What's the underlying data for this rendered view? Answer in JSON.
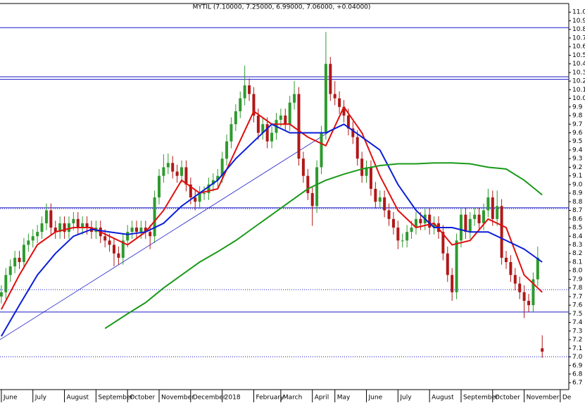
{
  "chart_data": {
    "type": "candlestick",
    "title": "MYTIL (7.10000, 7.25000, 6.99000, 7.06000, +0.04000)",
    "xlim": [
      -0.3,
      125.9
    ],
    "ylim": [
      6.62,
      11.1
    ],
    "xticks": [
      {
        "value": 0,
        "label": "June"
      },
      {
        "value": 7,
        "label": "July"
      },
      {
        "value": 14,
        "label": "August"
      },
      {
        "value": 21,
        "label": "September"
      },
      {
        "value": 28,
        "label": "October"
      },
      {
        "value": 35,
        "label": "November"
      },
      {
        "value": 42,
        "label": "December"
      },
      {
        "value": 49,
        "label": "2018"
      },
      {
        "value": 56,
        "label": "February"
      },
      {
        "value": 62,
        "label": "March"
      },
      {
        "value": 69,
        "label": "April"
      },
      {
        "value": 74,
        "label": "May"
      },
      {
        "value": 81,
        "label": "June"
      },
      {
        "value": 88,
        "label": "July"
      },
      {
        "value": 95,
        "label": "August"
      },
      {
        "value": 102,
        "label": "September"
      },
      {
        "value": 109,
        "label": "October"
      },
      {
        "value": 116,
        "label": "November"
      },
      {
        "value": 124,
        "label": "De"
      }
    ],
    "yticks": [
      6.7,
      6.8,
      6.9,
      {
        "value": 7,
        "label": "7.0"
      },
      7.1,
      7.2,
      7.3,
      7.4,
      7.5,
      7.6,
      7.7,
      7.8,
      7.9,
      {
        "value": 8,
        "label": "8.0"
      },
      8.1,
      8.2,
      8.3,
      8.4,
      8.5,
      8.6,
      8.7,
      8.8,
      8.9,
      {
        "value": 9,
        "label": "9.0"
      },
      9.1,
      9.2,
      9.3,
      9.4,
      9.5,
      9.6,
      9.7,
      9.8,
      9.9,
      {
        "value": 10,
        "label": "10.0"
      },
      10.1,
      10.2,
      10.3,
      10.4,
      10.5,
      10.6,
      10.7,
      10.8,
      10.9,
      {
        "value": 11,
        "label": "11.0"
      }
    ],
    "up_color": "#2e9a2e",
    "down_color": "#b01818",
    "candles": [
      [
        7.7,
        7.83,
        7.62,
        7.75
      ],
      [
        7.75,
        8.03,
        7.67,
        7.95
      ],
      [
        7.95,
        8.13,
        7.87,
        8.05
      ],
      [
        8.05,
        8.23,
        7.97,
        8.15
      ],
      [
        8.15,
        8.23,
        8.02,
        8.1
      ],
      [
        8.1,
        8.38,
        8.02,
        8.3
      ],
      [
        8.3,
        8.43,
        8.22,
        8.35
      ],
      [
        8.35,
        8.48,
        8.27,
        8.4
      ],
      [
        8.4,
        8.53,
        8.32,
        8.45
      ],
      [
        8.45,
        8.63,
        8.37,
        8.55
      ],
      [
        8.55,
        8.78,
        8.47,
        8.7
      ],
      [
        8.7,
        8.78,
        8.42,
        8.5
      ],
      [
        8.5,
        8.58,
        8.37,
        8.45
      ],
      [
        8.45,
        8.63,
        8.37,
        8.55
      ],
      [
        8.55,
        8.63,
        8.37,
        8.45
      ],
      [
        8.45,
        8.63,
        8.37,
        8.55
      ],
      [
        8.55,
        8.68,
        8.47,
        8.6
      ],
      [
        8.6,
        8.68,
        8.42,
        8.5
      ],
      [
        8.5,
        8.63,
        8.42,
        8.55
      ],
      [
        8.55,
        8.63,
        8.42,
        8.5
      ],
      [
        8.5,
        8.58,
        8.37,
        8.45
      ],
      [
        8.45,
        8.58,
        8.37,
        8.5
      ],
      [
        8.5,
        8.58,
        8.32,
        8.4
      ],
      [
        8.4,
        8.48,
        8.27,
        8.35
      ],
      [
        8.35,
        8.43,
        8.22,
        8.3
      ],
      [
        8.3,
        8.38,
        8.05,
        8.2
      ],
      [
        8.2,
        8.28,
        8.07,
        8.15
      ],
      [
        8.15,
        8.43,
        8.07,
        8.35
      ],
      [
        8.35,
        8.53,
        8.27,
        8.45
      ],
      [
        8.45,
        8.58,
        8.37,
        8.5
      ],
      [
        8.5,
        8.58,
        8.37,
        8.45
      ],
      [
        8.45,
        8.58,
        8.37,
        8.5
      ],
      [
        8.5,
        8.58,
        8.37,
        8.45
      ],
      [
        8.45,
        8.53,
        8.25,
        8.4
      ],
      [
        8.4,
        8.93,
        8.32,
        8.85
      ],
      [
        8.85,
        9.18,
        8.77,
        9.1
      ],
      [
        9.1,
        9.35,
        9.02,
        9.2
      ],
      [
        9.2,
        9.36,
        9.12,
        9.25
      ],
      [
        9.25,
        9.33,
        9.07,
        9.15
      ],
      [
        9.15,
        9.23,
        9.02,
        9.1
      ],
      [
        9.1,
        9.28,
        9.02,
        9.2
      ],
      [
        9.2,
        9.28,
        8.92,
        9.0
      ],
      [
        9.0,
        9.08,
        8.77,
        8.85
      ],
      [
        8.85,
        8.93,
        8.7,
        8.8
      ],
      [
        8.8,
        8.98,
        8.72,
        8.9
      ],
      [
        8.9,
        8.98,
        8.82,
        8.9
      ],
      [
        8.9,
        9.08,
        8.82,
        9.0
      ],
      [
        9.0,
        9.13,
        8.92,
        9.05
      ],
      [
        9.05,
        9.18,
        8.97,
        9.1
      ],
      [
        9.1,
        9.38,
        9.02,
        9.3
      ],
      [
        9.3,
        9.58,
        9.22,
        9.5
      ],
      [
        9.5,
        9.78,
        9.42,
        9.7
      ],
      [
        9.7,
        9.93,
        9.62,
        9.85
      ],
      [
        9.85,
        10.08,
        9.77,
        10.0
      ],
      [
        10.0,
        10.38,
        9.92,
        10.15
      ],
      [
        10.15,
        10.23,
        9.97,
        10.05
      ],
      [
        10.05,
        10.13,
        9.72,
        9.8
      ],
      [
        9.8,
        9.88,
        9.52,
        9.6
      ],
      [
        9.6,
        9.78,
        9.52,
        9.7
      ],
      [
        9.7,
        9.78,
        9.42,
        9.5
      ],
      [
        9.5,
        9.68,
        9.42,
        9.6
      ],
      [
        9.6,
        9.83,
        9.52,
        9.75
      ],
      [
        9.75,
        9.88,
        9.67,
        9.8
      ],
      [
        9.8,
        9.88,
        9.62,
        9.7
      ],
      [
        9.7,
        10.03,
        9.62,
        9.95
      ],
      [
        9.95,
        10.2,
        9.87,
        10.05
      ],
      [
        10.05,
        10.13,
        9.22,
        9.3
      ],
      [
        9.3,
        9.38,
        9.02,
        9.1
      ],
      [
        9.1,
        9.18,
        8.82,
        8.9
      ],
      [
        8.9,
        8.98,
        8.52,
        8.75
      ],
      [
        8.75,
        9.28,
        8.67,
        9.2
      ],
      [
        9.2,
        9.68,
        9.12,
        9.6
      ],
      [
        9.6,
        10.77,
        9.52,
        10.4
      ],
      [
        10.4,
        10.48,
        9.97,
        10.05
      ],
      [
        10.05,
        10.2,
        9.92,
        10.0
      ],
      [
        10.0,
        10.08,
        9.82,
        9.9
      ],
      [
        9.9,
        9.98,
        9.72,
        9.8
      ],
      [
        9.8,
        9.88,
        9.57,
        9.65
      ],
      [
        9.65,
        9.73,
        9.47,
        9.55
      ],
      [
        9.55,
        9.63,
        9.22,
        9.3
      ],
      [
        9.3,
        9.38,
        9.02,
        9.1
      ],
      [
        9.1,
        9.28,
        9.02,
        9.2
      ],
      [
        9.2,
        9.28,
        8.87,
        8.95
      ],
      [
        8.95,
        9.03,
        8.72,
        8.8
      ],
      [
        8.8,
        8.93,
        8.72,
        8.85
      ],
      [
        8.85,
        8.93,
        8.62,
        8.7
      ],
      [
        8.7,
        8.78,
        8.52,
        8.6
      ],
      [
        8.6,
        8.68,
        8.42,
        8.5
      ],
      [
        8.5,
        8.58,
        8.25,
        8.35
      ],
      [
        8.35,
        8.43,
        8.27,
        8.35
      ],
      [
        8.35,
        8.53,
        8.27,
        8.45
      ],
      [
        8.45,
        8.58,
        8.37,
        8.5
      ],
      [
        8.5,
        8.68,
        8.42,
        8.6
      ],
      [
        8.6,
        8.68,
        8.47,
        8.55
      ],
      [
        8.55,
        8.73,
        8.47,
        8.65
      ],
      [
        8.65,
        8.73,
        8.42,
        8.5
      ],
      [
        8.5,
        8.63,
        8.42,
        8.55
      ],
      [
        8.55,
        8.63,
        8.37,
        8.45
      ],
      [
        8.45,
        8.53,
        8.12,
        8.2
      ],
      [
        8.2,
        8.28,
        7.87,
        7.95
      ],
      [
        7.95,
        8.03,
        7.65,
        7.75
      ],
      [
        7.75,
        8.43,
        7.67,
        8.35
      ],
      [
        8.35,
        8.73,
        8.27,
        8.65
      ],
      [
        8.65,
        8.73,
        8.37,
        8.45
      ],
      [
        8.45,
        8.68,
        8.37,
        8.6
      ],
      [
        8.6,
        8.73,
        8.52,
        8.65
      ],
      [
        8.65,
        8.73,
        8.47,
        8.55
      ],
      [
        8.55,
        8.78,
        8.47,
        8.7
      ],
      [
        8.7,
        8.95,
        8.62,
        8.85
      ],
      [
        8.85,
        8.93,
        8.52,
        8.6
      ],
      [
        8.6,
        8.93,
        8.52,
        8.75
      ],
      [
        8.75,
        8.83,
        8.07,
        8.15
      ],
      [
        8.15,
        8.23,
        8.02,
        8.1
      ],
      [
        8.1,
        8.18,
        7.87,
        7.95
      ],
      [
        7.95,
        8.03,
        7.77,
        7.85
      ],
      [
        7.85,
        7.93,
        7.67,
        7.75
      ],
      [
        7.75,
        7.83,
        7.45,
        7.65
      ],
      [
        7.65,
        7.73,
        7.52,
        7.6
      ],
      [
        7.6,
        7.98,
        7.52,
        7.9
      ],
      [
        7.9,
        8.28,
        7.82,
        8.15
      ],
      [
        7.1,
        7.25,
        6.99,
        7.06
      ]
    ],
    "series": [
      {
        "color": "#e01010",
        "x": [
          0,
          4,
          8,
          12,
          16,
          20,
          24,
          28,
          32,
          36,
          40,
          44,
          48,
          52,
          56,
          60,
          64,
          68,
          72,
          76,
          80,
          84,
          88,
          92,
          96,
          100,
          104,
          108,
          112,
          116,
          120
        ],
        "values": [
          7.55,
          7.95,
          8.3,
          8.45,
          8.5,
          8.5,
          8.4,
          8.3,
          8.45,
          8.7,
          9.05,
          8.9,
          8.95,
          9.4,
          9.85,
          9.7,
          9.7,
          9.55,
          9.45,
          9.9,
          9.6,
          9.1,
          8.7,
          8.5,
          8.55,
          8.3,
          8.35,
          8.6,
          8.5,
          7.95,
          7.75
        ]
      },
      {
        "color": "#0a1ed8",
        "x": [
          0,
          4,
          8,
          12,
          16,
          20,
          24,
          28,
          32,
          36,
          40,
          44,
          48,
          52,
          56,
          60,
          64,
          68,
          72,
          76,
          80,
          84,
          88,
          92,
          96,
          100,
          104,
          108,
          112,
          116,
          120
        ],
        "values": [
          7.24,
          7.6,
          7.95,
          8.2,
          8.4,
          8.48,
          8.45,
          8.42,
          8.45,
          8.55,
          8.75,
          8.9,
          9.05,
          9.3,
          9.5,
          9.7,
          9.6,
          9.6,
          9.6,
          9.7,
          9.55,
          9.4,
          9.0,
          8.7,
          8.5,
          8.5,
          8.45,
          8.45,
          8.35,
          8.25,
          8.1
        ]
      },
      {
        "color": "#1a9a1a",
        "x": [
          23,
          28,
          32,
          36,
          40,
          44,
          48,
          52,
          56,
          60,
          64,
          68,
          72,
          76,
          80,
          84,
          88,
          92,
          96,
          100,
          104,
          108,
          112,
          116,
          120
        ],
        "values": [
          7.33,
          7.5,
          7.63,
          7.8,
          7.95,
          8.1,
          8.22,
          8.35,
          8.5,
          8.65,
          8.8,
          8.95,
          9.05,
          9.12,
          9.18,
          9.22,
          9.24,
          9.24,
          9.25,
          9.25,
          9.24,
          9.2,
          9.18,
          9.05,
          8.88
        ]
      }
    ],
    "hlines": [
      10.82,
      10.25,
      10.22,
      8.73,
      7.52
    ],
    "dotted_hlines": [
      8.72,
      7.78,
      7.0
    ],
    "hline_color": "#1a1ac8",
    "trendline": {
      "x": [
        -0.3,
        73
      ],
      "values": [
        7.2,
        9.62
      ]
    }
  }
}
